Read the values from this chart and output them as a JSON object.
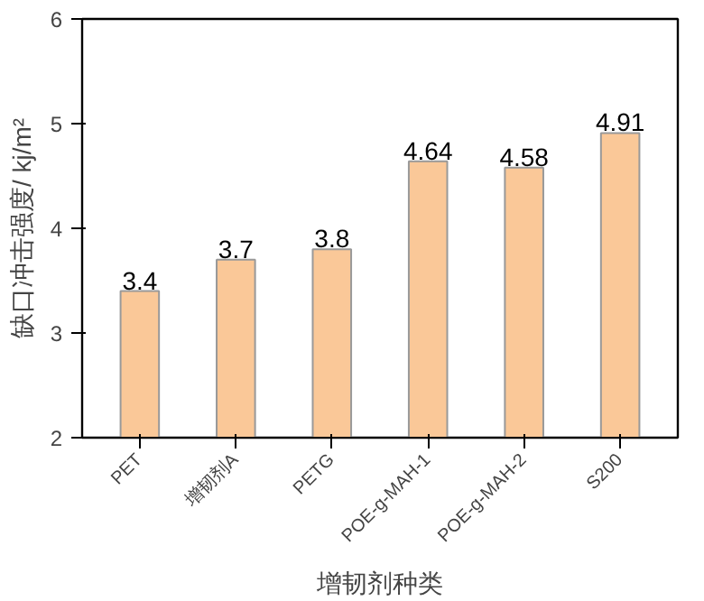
{
  "chart_data": {
    "type": "bar",
    "xlabel": "增韧剂种类",
    "ylabel": "缺口冲击强度/ kj/m²",
    "categories": [
      "PET",
      "增韧剂A",
      "PETG",
      "POE-g-MAH-1",
      "POE-g-MAH-2",
      "S200"
    ],
    "values": [
      3.4,
      3.7,
      3.8,
      4.64,
      4.58,
      4.91
    ],
    "color": "#fac898",
    "ylim": [
      2,
      6
    ],
    "yticks": [
      2,
      3,
      4,
      5,
      6
    ],
    "grid": false,
    "data_labels": true
  }
}
